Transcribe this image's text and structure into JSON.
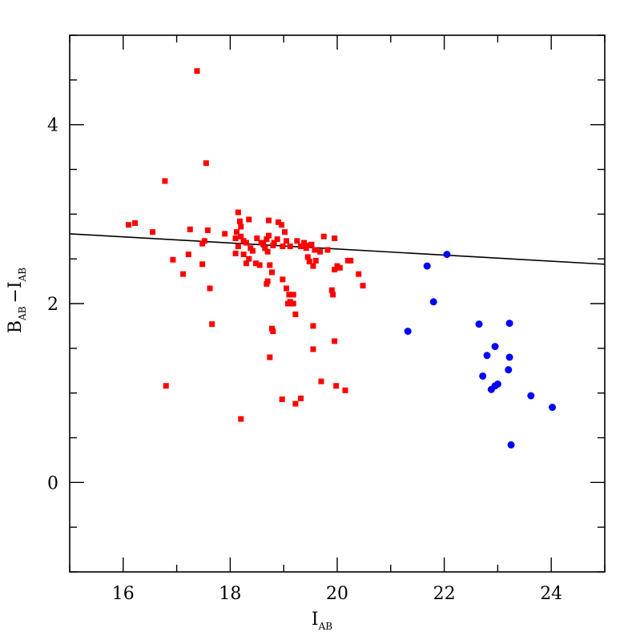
{
  "chart_data": {
    "type": "scatter",
    "title": "",
    "xlabel": "I",
    "xlabel_sub": "AB",
    "ylabel_main_1": "B",
    "ylabel_sub_1": "AB",
    "ylabel_main_2": "−I",
    "ylabel_sub_2": "AB",
    "xlim": [
      15,
      25
    ],
    "ylim": [
      -1,
      5
    ],
    "xticks": [
      16,
      18,
      20,
      22,
      24
    ],
    "yticks": [
      0,
      2,
      4
    ],
    "xtick_labels": [
      "16",
      "18",
      "20",
      "22",
      "24"
    ],
    "ytick_labels": [
      "0",
      "2",
      "4"
    ],
    "grid": false,
    "legend": "none",
    "colors": {
      "red_series": "#ff0000",
      "blue_series": "#0000ff",
      "line": "#000000"
    },
    "line": {
      "x": [
        15,
        25
      ],
      "y": [
        2.78,
        2.44
      ]
    },
    "series": [
      {
        "marker": "square",
        "color": "#ff0000",
        "points": [
          [
            17.38,
            4.6
          ],
          [
            17.55,
            3.57
          ],
          [
            16.78,
            3.37
          ],
          [
            16.1,
            2.88
          ],
          [
            16.22,
            2.9
          ],
          [
            16.55,
            2.8
          ],
          [
            17.25,
            2.83
          ],
          [
            17.58,
            2.82
          ],
          [
            17.52,
            2.7
          ],
          [
            17.48,
            2.67
          ],
          [
            16.93,
            2.49
          ],
          [
            17.22,
            2.55
          ],
          [
            17.48,
            2.44
          ],
          [
            17.12,
            2.33
          ],
          [
            17.62,
            2.17
          ],
          [
            17.66,
            1.77
          ],
          [
            16.8,
            1.08
          ],
          [
            17.9,
            2.78
          ],
          [
            18.15,
            3.02
          ],
          [
            18.18,
            2.92
          ],
          [
            18.12,
            2.8
          ],
          [
            18.2,
            2.86
          ],
          [
            18.35,
            2.94
          ],
          [
            18.2,
            2.75
          ],
          [
            18.1,
            2.73
          ],
          [
            18.25,
            2.7
          ],
          [
            18.3,
            2.68
          ],
          [
            18.15,
            2.64
          ],
          [
            18.38,
            2.62
          ],
          [
            18.1,
            2.56
          ],
          [
            18.25,
            2.55
          ],
          [
            18.42,
            2.59
          ],
          [
            18.35,
            2.5
          ],
          [
            18.3,
            2.45
          ],
          [
            18.48,
            2.45
          ],
          [
            18.55,
            2.43
          ],
          [
            18.5,
            2.73
          ],
          [
            18.58,
            2.68
          ],
          [
            18.62,
            2.66
          ],
          [
            18.68,
            2.72
          ],
          [
            18.72,
            2.76
          ],
          [
            18.65,
            2.62
          ],
          [
            18.7,
            2.58
          ],
          [
            18.72,
            2.93
          ],
          [
            18.8,
            2.65
          ],
          [
            18.82,
            2.68
          ],
          [
            18.88,
            2.72
          ],
          [
            18.9,
            2.91
          ],
          [
            18.96,
            2.88
          ],
          [
            18.98,
            2.64
          ],
          [
            19.02,
            2.8
          ],
          [
            19.05,
            2.7
          ],
          [
            19.12,
            2.64
          ],
          [
            18.74,
            2.43
          ],
          [
            18.78,
            2.35
          ],
          [
            18.7,
            2.25
          ],
          [
            18.68,
            2.22
          ],
          [
            18.98,
            2.27
          ],
          [
            19.05,
            2.17
          ],
          [
            19.1,
            2.1
          ],
          [
            19.18,
            2.1
          ],
          [
            19.12,
            2.02
          ],
          [
            19.08,
            2.0
          ],
          [
            19.18,
            2.0
          ],
          [
            19.22,
            1.88
          ],
          [
            18.78,
            1.72
          ],
          [
            18.8,
            1.69
          ],
          [
            18.74,
            1.4
          ],
          [
            19.25,
            2.7
          ],
          [
            19.32,
            2.64
          ],
          [
            19.38,
            2.68
          ],
          [
            19.42,
            2.62
          ],
          [
            19.45,
            2.65
          ],
          [
            19.52,
            2.66
          ],
          [
            19.58,
            2.6
          ],
          [
            19.45,
            2.52
          ],
          [
            19.48,
            2.47
          ],
          [
            19.55,
            2.42
          ],
          [
            19.6,
            2.48
          ],
          [
            19.68,
            2.58
          ],
          [
            19.75,
            2.75
          ],
          [
            19.82,
            2.6
          ],
          [
            19.95,
            2.73
          ],
          [
            19.9,
            2.15
          ],
          [
            19.92,
            2.1
          ],
          [
            19.95,
            2.38
          ],
          [
            20.0,
            2.42
          ],
          [
            20.05,
            2.4
          ],
          [
            20.2,
            2.48
          ],
          [
            20.25,
            2.48
          ],
          [
            20.4,
            2.33
          ],
          [
            20.48,
            2.2
          ],
          [
            19.55,
            1.75
          ],
          [
            19.55,
            1.49
          ],
          [
            19.95,
            1.58
          ],
          [
            19.7,
            1.13
          ],
          [
            19.98,
            1.08
          ],
          [
            20.15,
            1.03
          ],
          [
            18.97,
            0.93
          ],
          [
            19.22,
            0.88
          ],
          [
            19.32,
            0.94
          ],
          [
            18.2,
            0.71
          ]
        ]
      },
      {
        "marker": "circle",
        "color": "#0000ff",
        "points": [
          [
            21.32,
            1.69
          ],
          [
            21.68,
            2.42
          ],
          [
            21.8,
            2.02
          ],
          [
            22.05,
            2.55
          ],
          [
            22.65,
            1.77
          ],
          [
            23.22,
            1.78
          ],
          [
            22.95,
            1.52
          ],
          [
            22.8,
            1.42
          ],
          [
            23.22,
            1.4
          ],
          [
            22.72,
            1.19
          ],
          [
            23.2,
            1.26
          ],
          [
            22.88,
            1.04
          ],
          [
            22.95,
            1.08
          ],
          [
            23.0,
            1.1
          ],
          [
            23.62,
            0.97
          ],
          [
            24.02,
            0.84
          ],
          [
            23.25,
            0.42
          ]
        ]
      }
    ]
  }
}
